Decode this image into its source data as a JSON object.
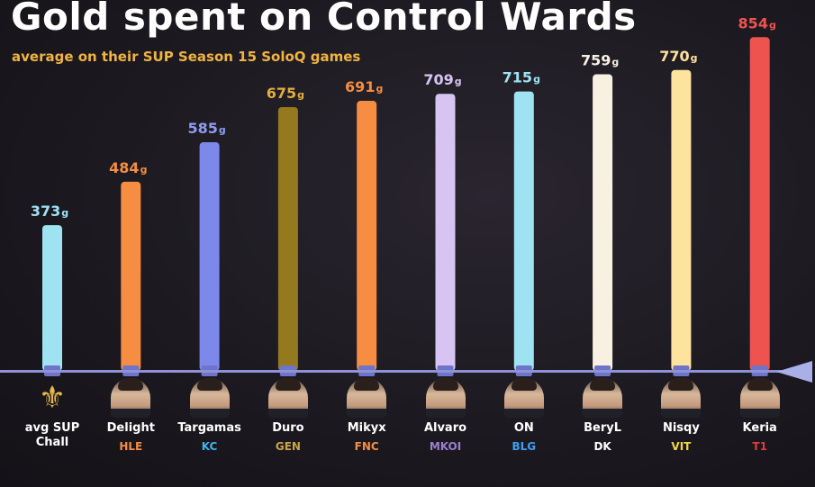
{
  "title": "Gold spent on Control Wards",
  "subtitle": "average on their SUP Season 15 SoloQ games",
  "chart_data": {
    "type": "bar",
    "categories": [
      "avg SUP Chall",
      "Delight",
      "Targamas",
      "Duro",
      "Mikyx",
      "Alvaro",
      "ON",
      "BeryL",
      "Nisqy",
      "Keria"
    ],
    "values": [
      373,
      484,
      585,
      675,
      691,
      709,
      715,
      759,
      770,
      854
    ],
    "value_suffix": "g",
    "title": "Gold spent on Control Wards",
    "subtitle": "average on their SUP Season 15 SoloQ games",
    "ylim": [
      0,
      880
    ],
    "grid": false,
    "colors": [
      "#9fe3f3",
      "#f58d42",
      "#7c89ea",
      "#94791f",
      "#f58d42",
      "#d7c4f3",
      "#9fe3f3",
      "#f8f1e1",
      "#fde39d",
      "#ef5350"
    ],
    "label_colors": [
      "#9fe3f3",
      "#f58d42",
      "#8f9cf0",
      "#e2ae3e",
      "#f58d42",
      "#d7c4f3",
      "#9fe3f3",
      "#f8f1e1",
      "#fde39d",
      "#ef5350"
    ]
  },
  "players": [
    {
      "name": "avg SUP Chall",
      "icon": "challenger-emblem-icon",
      "team": ""
    },
    {
      "name": "Delight",
      "icon": "player-photo",
      "team": "HLE"
    },
    {
      "name": "Targamas",
      "icon": "player-photo",
      "team": "KC"
    },
    {
      "name": "Duro",
      "icon": "player-photo",
      "team": "GEN"
    },
    {
      "name": "Mikyx",
      "icon": "player-photo",
      "team": "FNC"
    },
    {
      "name": "Alvaro",
      "icon": "player-photo",
      "team": "MKOI"
    },
    {
      "name": "ON",
      "icon": "player-photo",
      "team": "BLG"
    },
    {
      "name": "BeryL",
      "icon": "player-photo",
      "team": "DK"
    },
    {
      "name": "Nisqy",
      "icon": "player-photo",
      "team": "VIT"
    },
    {
      "name": "Keria",
      "icon": "player-photo",
      "team": "T1"
    }
  ],
  "team_colors": {
    "HLE": "#f58d42",
    "KC": "#3fb3ef",
    "GEN": "#c9a64a",
    "FNC": "#f58d42",
    "MKOI": "#9b7fd0",
    "BLG": "#3fa0f0",
    "DK": "#ffffff",
    "VIT": "#f5d742",
    "T1": "#e23a3a"
  }
}
